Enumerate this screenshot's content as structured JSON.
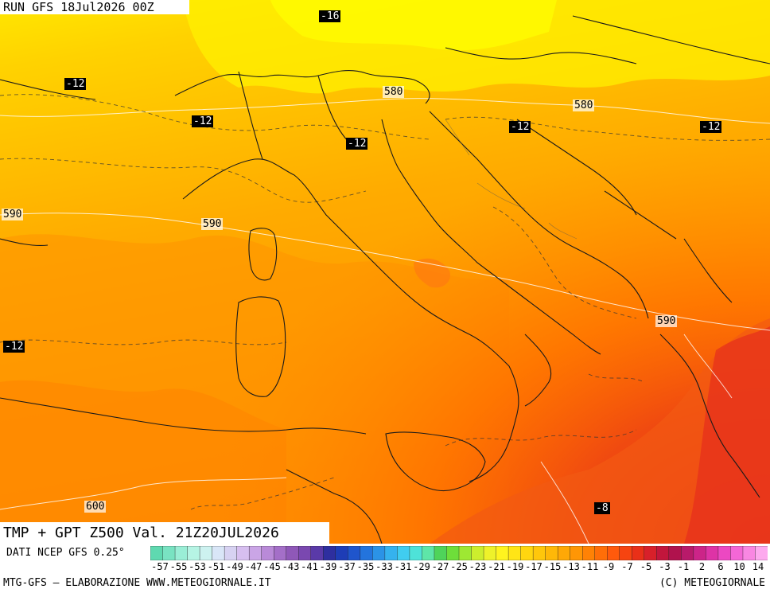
{
  "header": {
    "run_label": "RUN GFS 18Jul2026 00Z",
    "valid_label": "TMP + GPT Z500 Val. 21Z20JUL2026"
  },
  "map": {
    "temp_labels": [
      "-16",
      "-12",
      "-12",
      "-12",
      "-12",
      "-12",
      "-12",
      "-8"
    ],
    "geo_labels": [
      "580",
      "580",
      "590",
      "590",
      "590",
      "600"
    ]
  },
  "footer": {
    "source_label": "DATI NCEP GFS 0.25°",
    "credit_left": "MTG-GFS – ELABORAZIONE WWW.METEOGIORNALE.IT",
    "credit_right": "(C) METEOGIORNALE"
  },
  "colorbar": {
    "tick_labels": [
      "-57",
      "-55",
      "-53",
      "-51",
      "-49",
      "-47",
      "-45",
      "-43",
      "-41",
      "-39",
      "-37",
      "-35",
      "-33",
      "-31",
      "-29",
      "-27",
      "-25",
      "-23",
      "-21",
      "-19",
      "-17",
      "-15",
      "-13",
      "-11",
      "-9",
      "-7",
      "-5",
      "-3",
      "-1",
      "2",
      "6",
      "10",
      "14"
    ],
    "colors": [
      "#5fd9b0",
      "#79e3c2",
      "#9aeed6",
      "#b6f4e4",
      "#cdf2f0",
      "#d9e6f7",
      "#d7d2f2",
      "#d7bff0",
      "#caa5e6",
      "#b98ad8",
      "#a46fc8",
      "#8f58b8",
      "#7a48b0",
      "#5a3aa8",
      "#2e2f9f",
      "#1e3db6",
      "#1f55cc",
      "#2374dd",
      "#2b93e6",
      "#35b2ee",
      "#40cdf0",
      "#4ee2d8",
      "#5ee6a8",
      "#4fd45a",
      "#6ede3a",
      "#9ee833",
      "#ccee2d",
      "#eef22a",
      "#fff41f",
      "#ffe516",
      "#ffd60f",
      "#ffc70b",
      "#ffb808",
      "#ffa806",
      "#ff9605",
      "#ff8205",
      "#ff6e08",
      "#ff5a0c",
      "#f64410",
      "#e93018",
      "#d8202a",
      "#c2163c",
      "#b0124d",
      "#b81a6a",
      "#cc2488",
      "#de33a6",
      "#ec48c2",
      "#f467d6",
      "#f987e2",
      "#fdaaee"
    ]
  }
}
